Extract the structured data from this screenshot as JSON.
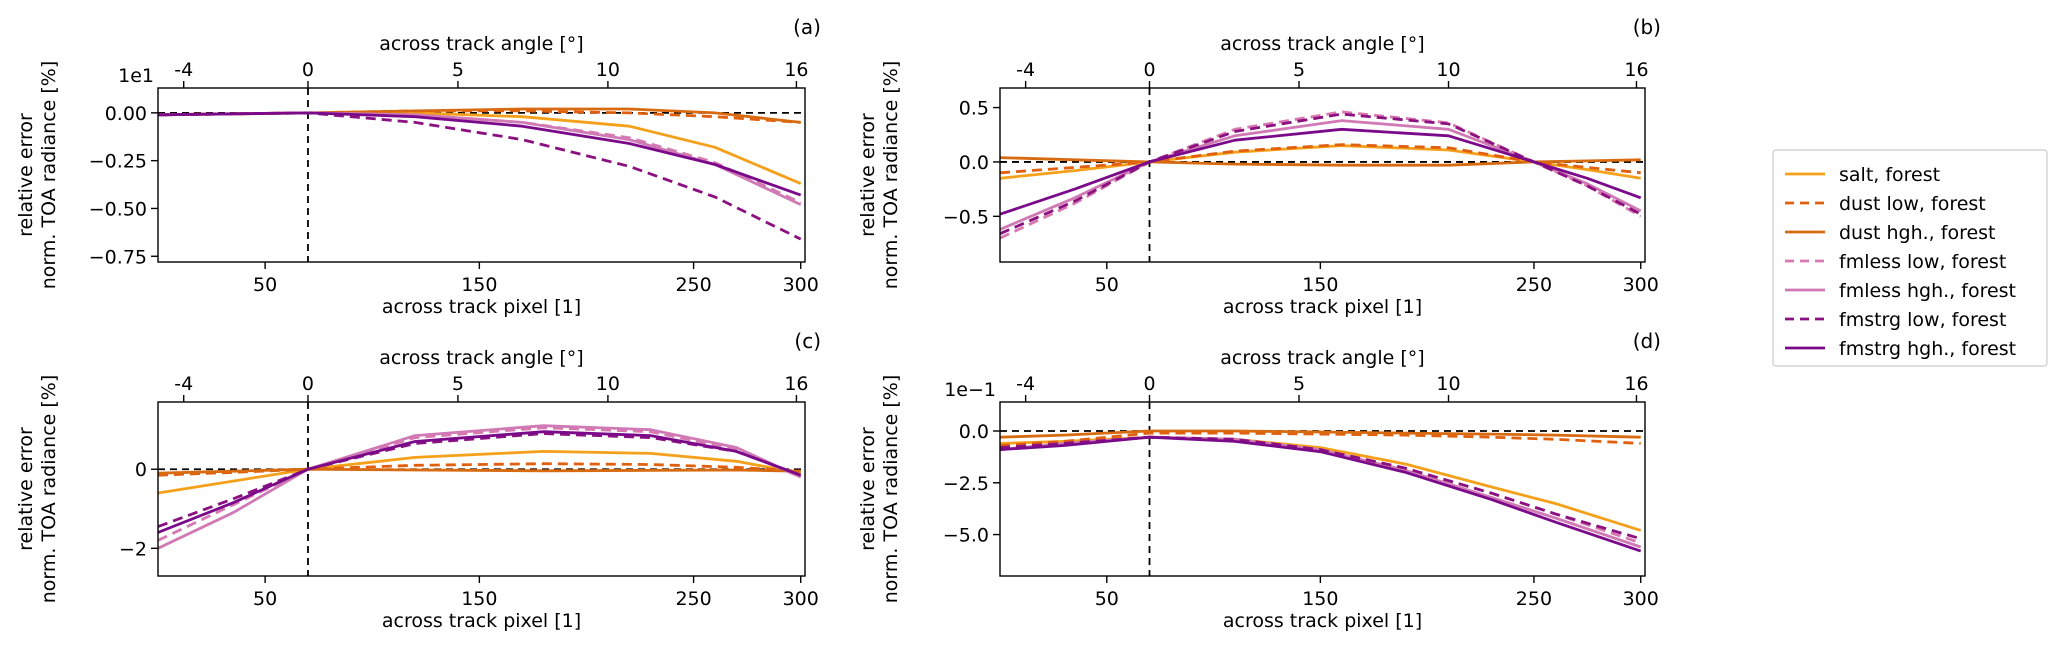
{
  "chart_data": [
    {
      "type": "line",
      "panel_label": "(a)",
      "xlabel": "across track pixel [1]",
      "ylabel_line1": "relative error",
      "ylabel_line2": "norm. TOA radiance [%]",
      "top_xlabel": "across track angle [°]",
      "offset_text": "1e1",
      "xlim": [
        0,
        302
      ],
      "ylim": [
        -0.78,
        0.13
      ],
      "xticks": [
        50,
        150,
        250,
        300
      ],
      "yticks": [
        0.0,
        -0.25,
        -0.5,
        -0.75
      ],
      "ytick_labels": [
        "0.00",
        "−0.25",
        "−0.50",
        "−0.75"
      ],
      "top_ticks": [
        {
          "px": 12,
          "label": "-4"
        },
        {
          "px": 70,
          "label": "0"
        },
        {
          "px": 140,
          "label": "5"
        },
        {
          "px": 210,
          "label": "10"
        },
        {
          "px": 298,
          "label": "16"
        }
      ],
      "nadir_pixel": 70,
      "series": [
        {
          "name": "salt, forest",
          "x": [
            0,
            70,
            120,
            170,
            220,
            260,
            300
          ],
          "y": [
            -0.01,
            0.0,
            0.0,
            -0.02,
            -0.07,
            -0.18,
            -0.37
          ]
        },
        {
          "name": "dust low, forest",
          "x": [
            0,
            70,
            120,
            170,
            220,
            260,
            300
          ],
          "y": [
            -0.01,
            0.0,
            0.01,
            0.01,
            0.0,
            -0.02,
            -0.05
          ]
        },
        {
          "name": "dust hgh., forest",
          "x": [
            0,
            70,
            120,
            170,
            220,
            260,
            300
          ],
          "y": [
            -0.01,
            0.0,
            0.01,
            0.02,
            0.02,
            0.0,
            -0.05
          ]
        },
        {
          "name": "fmless low, forest",
          "x": [
            0,
            70,
            120,
            170,
            220,
            260,
            300
          ],
          "y": [
            -0.01,
            0.0,
            -0.01,
            -0.05,
            -0.13,
            -0.26,
            -0.47
          ]
        },
        {
          "name": "fmless hgh., forest",
          "x": [
            0,
            70,
            120,
            170,
            220,
            260,
            300
          ],
          "y": [
            -0.01,
            0.0,
            -0.01,
            -0.05,
            -0.14,
            -0.27,
            -0.48
          ]
        },
        {
          "name": "fmstrg low, forest",
          "x": [
            0,
            70,
            120,
            170,
            220,
            260,
            300
          ],
          "y": [
            -0.01,
            0.0,
            -0.05,
            -0.14,
            -0.28,
            -0.44,
            -0.66
          ]
        },
        {
          "name": "fmstrg hgh., forest",
          "x": [
            0,
            70,
            120,
            170,
            220,
            260,
            300
          ],
          "y": [
            -0.01,
            0.0,
            -0.02,
            -0.07,
            -0.16,
            -0.27,
            -0.43
          ]
        }
      ]
    },
    {
      "type": "line",
      "panel_label": "(b)",
      "xlabel": "across track pixel [1]",
      "ylabel_line1": "relative error",
      "ylabel_line2": "norm. TOA radiance [%]",
      "top_xlabel": "across track angle [°]",
      "offset_text": "",
      "xlim": [
        0,
        302
      ],
      "ylim": [
        -0.92,
        0.68
      ],
      "xticks": [
        50,
        150,
        250,
        300
      ],
      "yticks": [
        0.5,
        0.0,
        -0.5
      ],
      "ytick_labels": [
        "0.5",
        "0.0",
        "−0.5"
      ],
      "top_ticks": [
        {
          "px": 12,
          "label": "-4"
        },
        {
          "px": 70,
          "label": "0"
        },
        {
          "px": 140,
          "label": "5"
        },
        {
          "px": 210,
          "label": "10"
        },
        {
          "px": 298,
          "label": "16"
        }
      ],
      "nadir_pixel": 70,
      "series": [
        {
          "name": "salt, forest",
          "x": [
            0,
            35,
            70,
            110,
            160,
            210,
            250,
            275,
            300
          ],
          "y": [
            -0.15,
            -0.08,
            0.0,
            0.09,
            0.15,
            0.11,
            0.0,
            -0.07,
            -0.15
          ]
        },
        {
          "name": "dust low, forest",
          "x": [
            0,
            35,
            70,
            110,
            160,
            210,
            250,
            275,
            300
          ],
          "y": [
            -0.1,
            -0.05,
            0.0,
            0.1,
            0.16,
            0.13,
            0.0,
            -0.05,
            -0.1
          ]
        },
        {
          "name": "dust hgh., forest",
          "x": [
            0,
            35,
            70,
            110,
            160,
            210,
            250,
            275,
            300
          ],
          "y": [
            0.04,
            0.02,
            0.0,
            -0.02,
            -0.03,
            -0.03,
            0.0,
            0.01,
            0.02
          ]
        },
        {
          "name": "fmless low, forest",
          "x": [
            0,
            35,
            70,
            110,
            160,
            210,
            250,
            275,
            300
          ],
          "y": [
            -0.7,
            -0.38,
            0.0,
            0.3,
            0.46,
            0.36,
            0.0,
            -0.22,
            -0.5
          ]
        },
        {
          "name": "fmless hgh., forest",
          "x": [
            0,
            35,
            70,
            110,
            160,
            210,
            250,
            275,
            300
          ],
          "y": [
            -0.62,
            -0.33,
            0.0,
            0.24,
            0.38,
            0.3,
            0.0,
            -0.2,
            -0.45
          ]
        },
        {
          "name": "fmstrg low, forest",
          "x": [
            0,
            35,
            70,
            110,
            160,
            210,
            250,
            275,
            300
          ],
          "y": [
            -0.66,
            -0.36,
            0.0,
            0.28,
            0.44,
            0.35,
            0.0,
            -0.22,
            -0.48
          ]
        },
        {
          "name": "fmstrg hgh., forest",
          "x": [
            0,
            35,
            70,
            110,
            160,
            210,
            250,
            275,
            300
          ],
          "y": [
            -0.48,
            -0.25,
            0.0,
            0.2,
            0.3,
            0.24,
            0.0,
            -0.15,
            -0.33
          ]
        }
      ]
    },
    {
      "type": "line",
      "panel_label": "(c)",
      "xlabel": "across track pixel [1]",
      "ylabel_line1": "relative error",
      "ylabel_line2": "norm. TOA radiance [%]",
      "top_xlabel": "across track angle [°]",
      "offset_text": "",
      "xlim": [
        0,
        302
      ],
      "ylim": [
        -2.7,
        1.7
      ],
      "xticks": [
        50,
        150,
        250,
        300
      ],
      "yticks": [
        0,
        -2
      ],
      "ytick_labels": [
        "0",
        "−2"
      ],
      "top_ticks": [
        {
          "px": 12,
          "label": "-4"
        },
        {
          "px": 70,
          "label": "0"
        },
        {
          "px": 140,
          "label": "5"
        },
        {
          "px": 210,
          "label": "10"
        },
        {
          "px": 298,
          "label": "16"
        }
      ],
      "nadir_pixel": 70,
      "series": [
        {
          "name": "salt, forest",
          "x": [
            0,
            35,
            70,
            120,
            180,
            230,
            270,
            300
          ],
          "y": [
            -0.6,
            -0.3,
            0.0,
            0.3,
            0.45,
            0.4,
            0.2,
            -0.1
          ]
        },
        {
          "name": "dust low, forest",
          "x": [
            0,
            35,
            70,
            120,
            180,
            230,
            270,
            300
          ],
          "y": [
            -0.15,
            -0.08,
            0.0,
            0.1,
            0.14,
            0.12,
            0.05,
            -0.05
          ]
        },
        {
          "name": "dust hgh., forest",
          "x": [
            0,
            35,
            70,
            120,
            180,
            230,
            270,
            300
          ],
          "y": [
            -0.1,
            -0.05,
            0.0,
            -0.02,
            -0.04,
            -0.03,
            -0.02,
            -0.05
          ]
        },
        {
          "name": "fmless low, forest",
          "x": [
            0,
            35,
            70,
            120,
            180,
            230,
            270,
            300
          ],
          "y": [
            -1.8,
            -0.9,
            0.0,
            0.8,
            1.05,
            0.95,
            0.5,
            -0.2
          ]
        },
        {
          "name": "fmless hgh., forest",
          "x": [
            0,
            35,
            70,
            120,
            180,
            230,
            270,
            300
          ],
          "y": [
            -2.0,
            -1.1,
            0.0,
            0.85,
            1.1,
            1.0,
            0.55,
            -0.2
          ]
        },
        {
          "name": "fmstrg low, forest",
          "x": [
            0,
            35,
            70,
            120,
            180,
            230,
            270,
            300
          ],
          "y": [
            -1.45,
            -0.75,
            0.0,
            0.65,
            0.9,
            0.8,
            0.45,
            -0.15
          ]
        },
        {
          "name": "fmstrg hgh., forest",
          "x": [
            0,
            35,
            70,
            120,
            180,
            230,
            270,
            300
          ],
          "y": [
            -1.6,
            -0.85,
            0.0,
            0.7,
            0.95,
            0.85,
            0.45,
            -0.15
          ]
        }
      ]
    },
    {
      "type": "line",
      "panel_label": "(d)",
      "xlabel": "across track pixel [1]",
      "ylabel_line1": "relative error",
      "ylabel_line2": "norm. TOA radiance [%]",
      "top_xlabel": "across track angle [°]",
      "offset_text": "1e−1",
      "xlim": [
        0,
        302
      ],
      "ylim": [
        -7.0,
        1.4
      ],
      "xticks": [
        50,
        150,
        250,
        300
      ],
      "yticks": [
        0.0,
        -2.5,
        -5.0
      ],
      "ytick_labels": [
        "0.0",
        "−2.5",
        "−5.0"
      ],
      "top_ticks": [
        {
          "px": 12,
          "label": "-4"
        },
        {
          "px": 70,
          "label": "0"
        },
        {
          "px": 140,
          "label": "5"
        },
        {
          "px": 210,
          "label": "10"
        },
        {
          "px": 298,
          "label": "16"
        }
      ],
      "nadir_pixel": 70,
      "series": [
        {
          "name": "salt, forest",
          "x": [
            0,
            30,
            70,
            110,
            150,
            190,
            230,
            260,
            300
          ],
          "y": [
            -0.6,
            -0.5,
            -0.3,
            -0.4,
            -0.8,
            -1.6,
            -2.7,
            -3.5,
            -4.8
          ]
        },
        {
          "name": "dust low, forest",
          "x": [
            0,
            30,
            70,
            110,
            150,
            190,
            230,
            260,
            300
          ],
          "y": [
            -0.7,
            -0.5,
            -0.1,
            -0.1,
            -0.15,
            -0.2,
            -0.3,
            -0.4,
            -0.6
          ]
        },
        {
          "name": "dust hgh., forest",
          "x": [
            0,
            30,
            70,
            110,
            150,
            190,
            230,
            260,
            300
          ],
          "y": [
            -0.3,
            -0.2,
            0.0,
            0.0,
            -0.05,
            -0.1,
            -0.15,
            -0.2,
            -0.3
          ]
        },
        {
          "name": "fmless low, forest",
          "x": [
            0,
            30,
            70,
            110,
            150,
            190,
            230,
            260,
            300
          ],
          "y": [
            -0.9,
            -0.6,
            -0.3,
            -0.4,
            -0.9,
            -1.8,
            -3.0,
            -4.0,
            -5.4
          ]
        },
        {
          "name": "fmless hgh., forest",
          "x": [
            0,
            30,
            70,
            110,
            150,
            190,
            230,
            260,
            300
          ],
          "y": [
            -0.9,
            -0.6,
            -0.3,
            -0.4,
            -0.9,
            -1.9,
            -3.2,
            -4.2,
            -5.6
          ]
        },
        {
          "name": "fmstrg low, forest",
          "x": [
            0,
            30,
            70,
            110,
            150,
            190,
            230,
            260,
            300
          ],
          "y": [
            -0.8,
            -0.6,
            -0.3,
            -0.4,
            -0.9,
            -1.8,
            -3.0,
            -4.0,
            -5.2
          ]
        },
        {
          "name": "fmstrg hgh., forest",
          "x": [
            0,
            30,
            70,
            110,
            150,
            190,
            230,
            260,
            300
          ],
          "y": [
            -0.9,
            -0.7,
            -0.3,
            -0.5,
            -1.0,
            -2.0,
            -3.3,
            -4.4,
            -5.8
          ]
        }
      ]
    }
  ],
  "legend": {
    "entries": [
      {
        "label": "salt, forest",
        "color": "#f5a01a",
        "dash": "solid"
      },
      {
        "label": "dust low, forest",
        "color": "#e06010",
        "dash": "dashed"
      },
      {
        "label": "dust hgh., forest",
        "color": "#d86a10",
        "dash": "solid"
      },
      {
        "label": "fmless low, forest",
        "color": "#d878b0",
        "dash": "dashed"
      },
      {
        "label": "fmless hgh., forest",
        "color": "#d07ab5",
        "dash": "solid"
      },
      {
        "label": "fmstrg low, forest",
        "color": "#8b1080",
        "dash": "dashed"
      },
      {
        "label": "fmstrg hgh., forest",
        "color": "#7a0a8a",
        "dash": "solid"
      }
    ]
  }
}
